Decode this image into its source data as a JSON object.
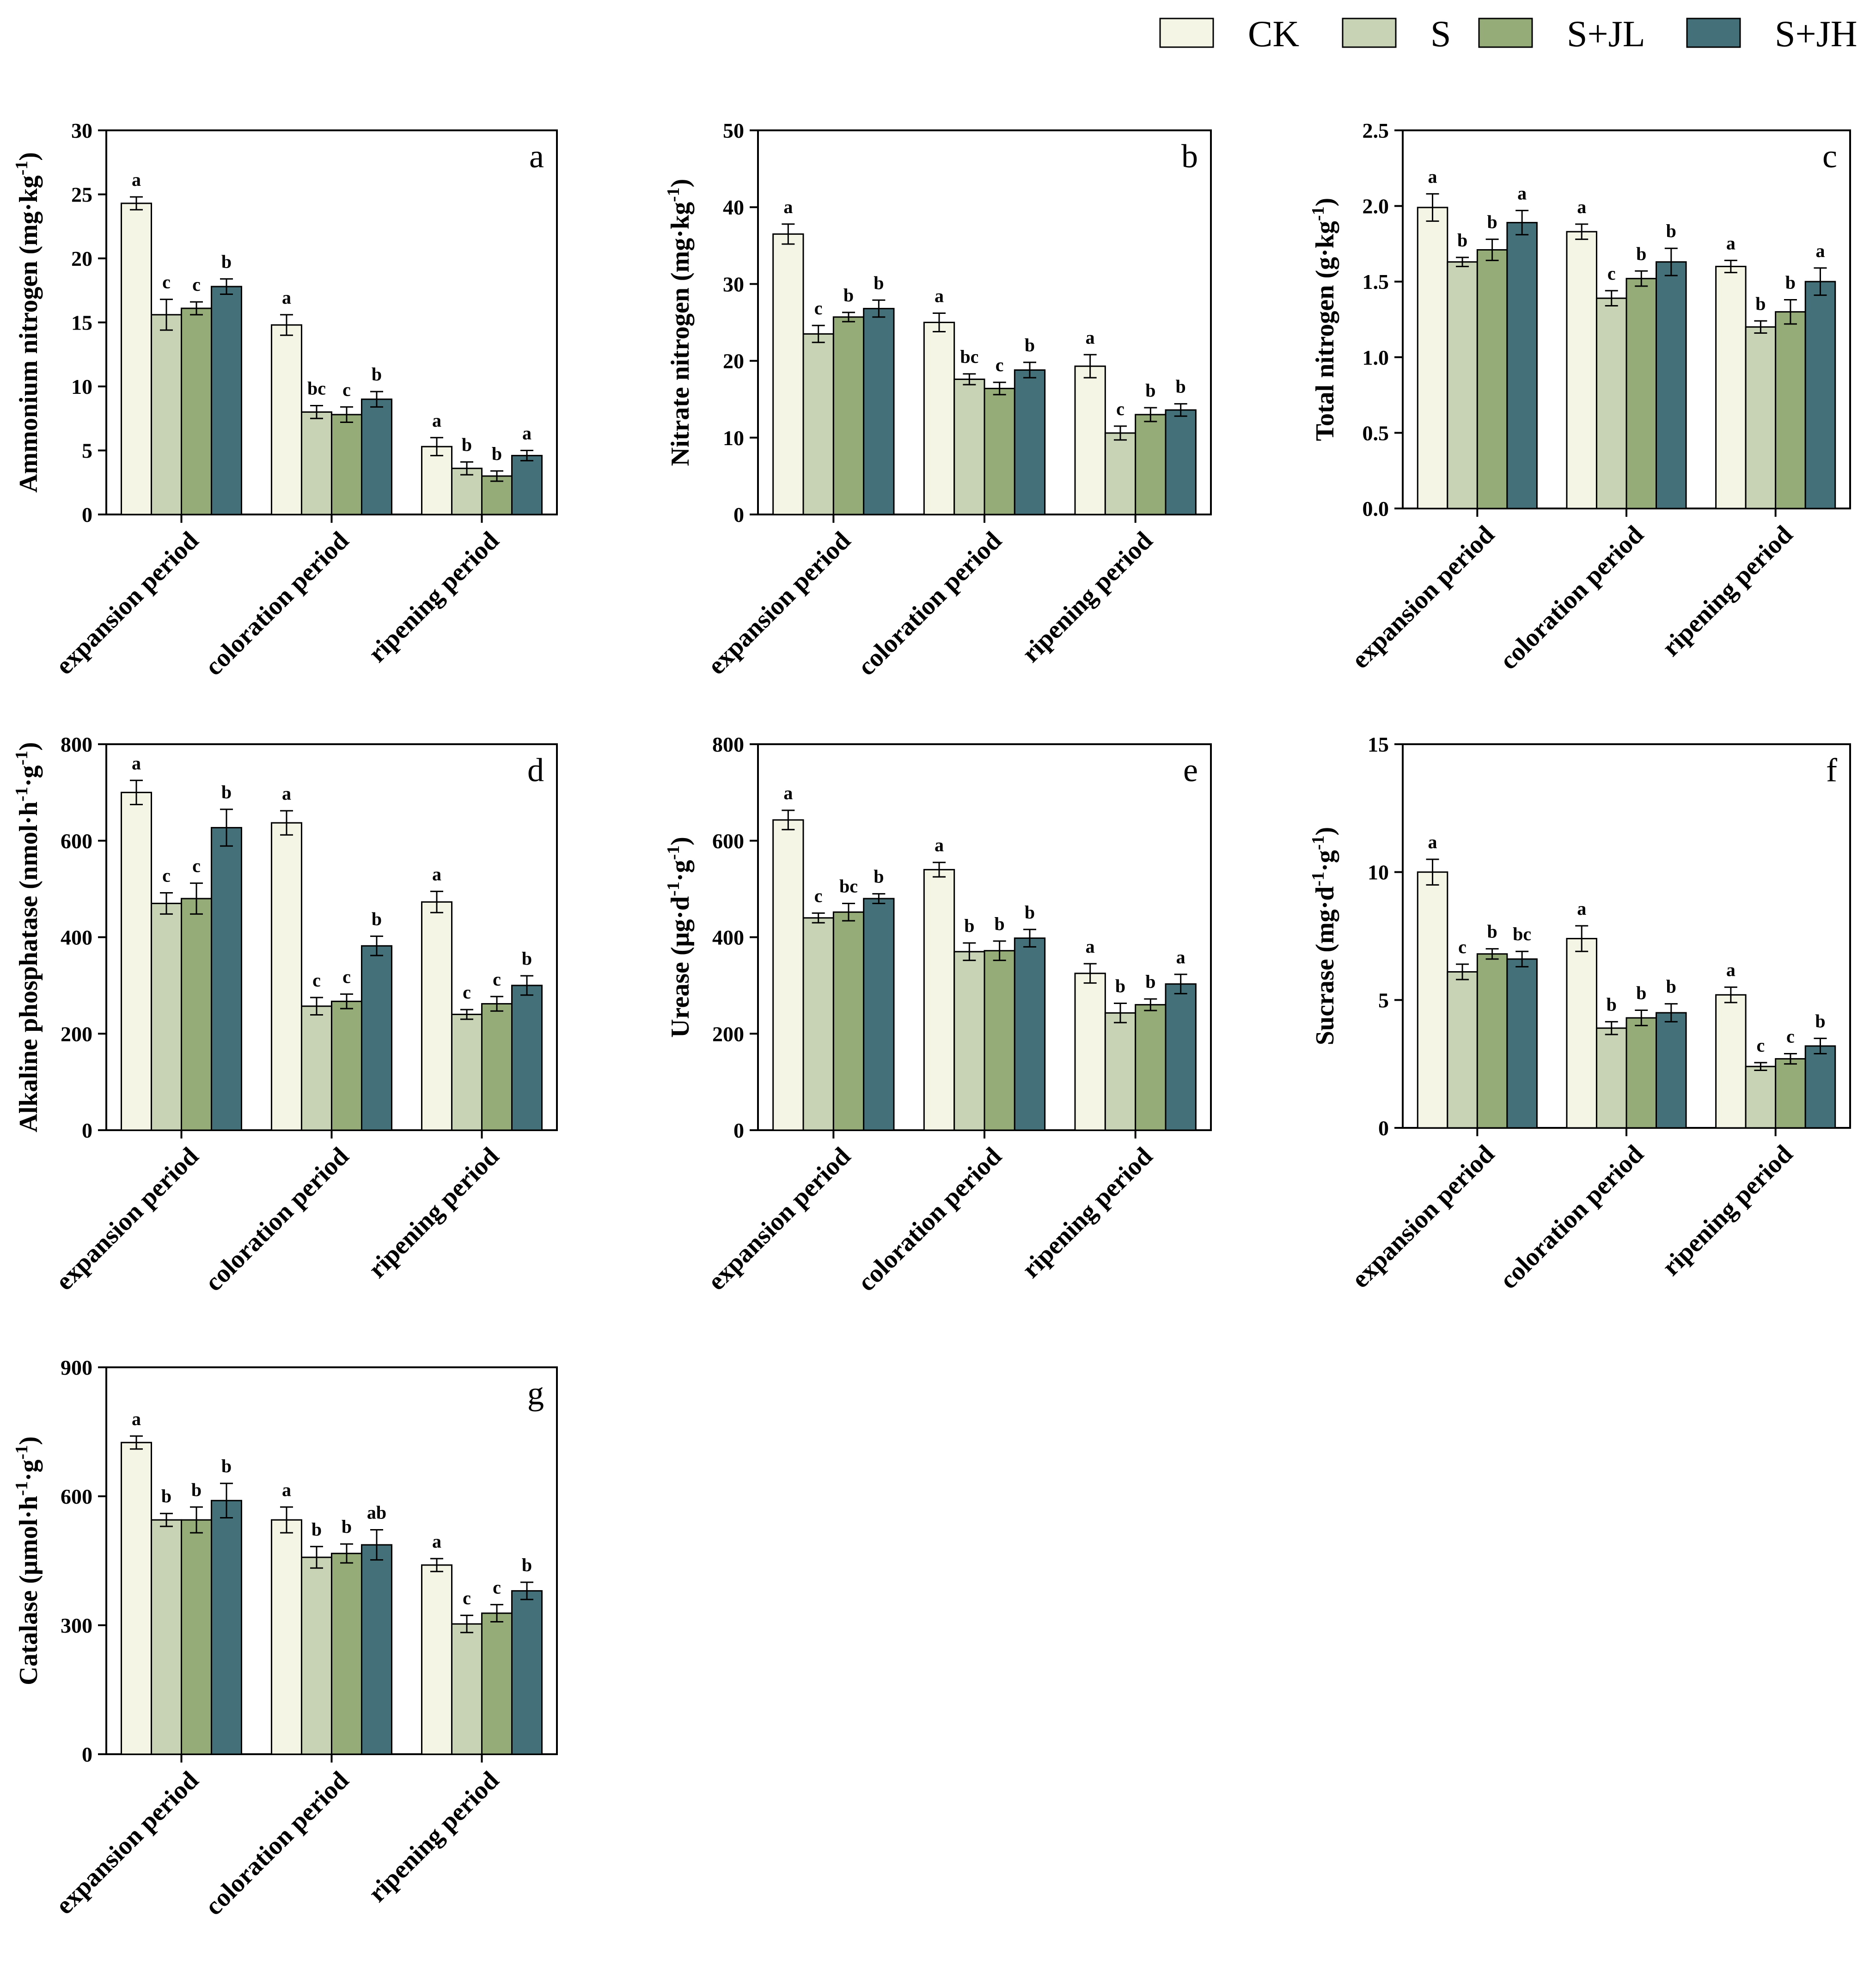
{
  "legend": {
    "entries": [
      {
        "name": "CK",
        "color": "#f5f5e6"
      },
      {
        "name": "S",
        "color": "#c8d3b6"
      },
      {
        "name": "S+JL",
        "color": "#95ab78"
      },
      {
        "name": "S+JH",
        "color": "#44707a"
      }
    ]
  },
  "chart_data": [
    {
      "type": "bar",
      "panel": "a",
      "ylabel": "Ammonium nitrogen (mg·kg⁻¹)",
      "ylim": [
        0,
        30
      ],
      "yticks": [
        0,
        5,
        10,
        15,
        20,
        25,
        30
      ],
      "categories": [
        "expansion period",
        "coloration period",
        "ripening period"
      ],
      "series": [
        {
          "name": "CK",
          "values": [
            24.3,
            14.8,
            5.3
          ],
          "errors": [
            0.5,
            0.8,
            0.7
          ],
          "labels": [
            "a",
            "a",
            "a"
          ]
        },
        {
          "name": "S",
          "values": [
            15.6,
            8.0,
            3.6
          ],
          "errors": [
            1.2,
            0.5,
            0.5
          ],
          "labels": [
            "c",
            "bc",
            "b"
          ]
        },
        {
          "name": "S+JL",
          "values": [
            16.1,
            7.8,
            3.0
          ],
          "errors": [
            0.5,
            0.6,
            0.4
          ],
          "labels": [
            "c",
            "c",
            "b"
          ]
        },
        {
          "name": "S+JH",
          "values": [
            17.8,
            9.0,
            4.6
          ],
          "errors": [
            0.6,
            0.6,
            0.4
          ],
          "labels": [
            "b",
            "b",
            "a"
          ]
        }
      ]
    },
    {
      "type": "bar",
      "panel": "b",
      "ylabel": "Nitrate nitrogen (mg·kg⁻¹)",
      "ylim": [
        0,
        50
      ],
      "yticks": [
        0,
        10,
        20,
        30,
        40,
        50
      ],
      "categories": [
        "expansion period",
        "coloration period",
        "ripening period"
      ],
      "series": [
        {
          "name": "CK",
          "values": [
            36.5,
            25.0,
            19.3
          ],
          "errors": [
            1.3,
            1.2,
            1.5
          ],
          "labels": [
            "a",
            "a",
            "a"
          ]
        },
        {
          "name": "S",
          "values": [
            23.5,
            17.6,
            10.6
          ],
          "errors": [
            1.1,
            0.7,
            0.9
          ],
          "labels": [
            "c",
            "bc",
            "c"
          ]
        },
        {
          "name": "S+JL",
          "values": [
            25.7,
            16.4,
            13.0
          ],
          "errors": [
            0.6,
            0.8,
            0.9
          ],
          "labels": [
            "b",
            "c",
            "b"
          ]
        },
        {
          "name": "S+JH",
          "values": [
            26.8,
            18.8,
            13.6
          ],
          "errors": [
            1.1,
            1.0,
            0.8
          ],
          "labels": [
            "b",
            "b",
            "b"
          ]
        }
      ]
    },
    {
      "type": "bar",
      "panel": "c",
      "ylabel": "Total nitrogen (g·kg⁻¹)",
      "ylim": [
        0,
        2.5
      ],
      "yticks": [
        "0.0",
        "0.5",
        "1.0",
        "1.5",
        "2.0",
        "2.5"
      ],
      "categories": [
        "expansion period",
        "coloration period",
        "ripening period"
      ],
      "series": [
        {
          "name": "CK",
          "values": [
            1.99,
            1.83,
            1.6
          ],
          "errors": [
            0.09,
            0.05,
            0.04
          ],
          "labels": [
            "a",
            "a",
            "a"
          ]
        },
        {
          "name": "S",
          "values": [
            1.63,
            1.39,
            1.2
          ],
          "errors": [
            0.03,
            0.05,
            0.04
          ],
          "labels": [
            "b",
            "c",
            "b"
          ]
        },
        {
          "name": "S+JL",
          "values": [
            1.71,
            1.52,
            1.3
          ],
          "errors": [
            0.07,
            0.05,
            0.08
          ],
          "labels": [
            "b",
            "b",
            "b"
          ]
        },
        {
          "name": "S+JH",
          "values": [
            1.89,
            1.63,
            1.5
          ],
          "errors": [
            0.08,
            0.09,
            0.09
          ],
          "labels": [
            "a",
            "b",
            "a"
          ]
        }
      ]
    },
    {
      "type": "bar",
      "panel": "d",
      "ylabel": "Alkaline phosphatase (nmol·h⁻¹·g⁻¹)",
      "ylim": [
        0,
        800
      ],
      "yticks": [
        0,
        200,
        400,
        600,
        800
      ],
      "categories": [
        "expansion period",
        "coloration period",
        "ripening period"
      ],
      "series": [
        {
          "name": "CK",
          "values": [
            700,
            637,
            473
          ],
          "errors": [
            25,
            25,
            22
          ],
          "labels": [
            "a",
            "a",
            "a"
          ]
        },
        {
          "name": "S",
          "values": [
            470,
            257,
            240
          ],
          "errors": [
            22,
            18,
            10
          ],
          "labels": [
            "c",
            "c",
            "c"
          ]
        },
        {
          "name": "S+JL",
          "values": [
            480,
            267,
            262
          ],
          "errors": [
            32,
            15,
            15
          ],
          "labels": [
            "c",
            "c",
            "c"
          ]
        },
        {
          "name": "S+JH",
          "values": [
            627,
            382,
            300
          ],
          "errors": [
            38,
            20,
            20
          ],
          "labels": [
            "b",
            "b",
            "b"
          ]
        }
      ]
    },
    {
      "type": "bar",
      "panel": "e",
      "ylabel": "Urease (μg·d⁻¹·g⁻¹)",
      "ylim": [
        0,
        800
      ],
      "yticks": [
        0,
        200,
        400,
        600,
        800
      ],
      "categories": [
        "expansion period",
        "coloration period",
        "ripening period"
      ],
      "series": [
        {
          "name": "CK",
          "values": [
            643,
            540,
            325
          ],
          "errors": [
            20,
            15,
            20
          ],
          "labels": [
            "a",
            "a",
            "a"
          ]
        },
        {
          "name": "S",
          "values": [
            440,
            370,
            243
          ],
          "errors": [
            10,
            18,
            20
          ],
          "labels": [
            "c",
            "b",
            "b"
          ]
        },
        {
          "name": "S+JL",
          "values": [
            452,
            372,
            260
          ],
          "errors": [
            18,
            20,
            12
          ],
          "labels": [
            "bc",
            "b",
            "b"
          ]
        },
        {
          "name": "S+JH",
          "values": [
            480,
            398,
            303
          ],
          "errors": [
            10,
            18,
            20
          ],
          "labels": [
            "b",
            "b",
            "a"
          ]
        }
      ]
    },
    {
      "type": "bar",
      "panel": "f",
      "ylabel": "Sucrase (mg·d⁻¹·g⁻¹)",
      "ylim": [
        0,
        15
      ],
      "yticks": [
        0,
        5,
        10,
        15
      ],
      "categories": [
        "expansion period",
        "coloration period",
        "ripening period"
      ],
      "series": [
        {
          "name": "CK",
          "values": [
            10.0,
            7.4,
            5.2
          ],
          "errors": [
            0.5,
            0.5,
            0.3
          ],
          "labels": [
            "a",
            "a",
            "a"
          ]
        },
        {
          "name": "S",
          "values": [
            6.1,
            3.9,
            2.4
          ],
          "errors": [
            0.3,
            0.25,
            0.15
          ],
          "labels": [
            "c",
            "b",
            "c"
          ]
        },
        {
          "name": "S+JL",
          "values": [
            6.8,
            4.3,
            2.7
          ],
          "errors": [
            0.2,
            0.3,
            0.2
          ],
          "labels": [
            "b",
            "b",
            "c"
          ]
        },
        {
          "name": "S+JH",
          "values": [
            6.6,
            4.5,
            3.2
          ],
          "errors": [
            0.3,
            0.35,
            0.3
          ],
          "labels": [
            "bc",
            "b",
            "b"
          ]
        }
      ]
    },
    {
      "type": "bar",
      "panel": "g",
      "ylabel": "Catalase (μmol·h⁻¹·g⁻¹)",
      "ylim": [
        0,
        900
      ],
      "yticks": [
        0,
        300,
        600,
        900
      ],
      "categories": [
        "expansion period",
        "coloration period",
        "ripening period"
      ],
      "series": [
        {
          "name": "CK",
          "values": [
            725,
            545,
            440
          ],
          "errors": [
            15,
            30,
            15
          ],
          "labels": [
            "a",
            "a",
            "a"
          ]
        },
        {
          "name": "S",
          "values": [
            545,
            458,
            303
          ],
          "errors": [
            15,
            25,
            20
          ],
          "labels": [
            "b",
            "b",
            "c"
          ]
        },
        {
          "name": "S+JL",
          "values": [
            545,
            467,
            328
          ],
          "errors": [
            30,
            22,
            20
          ],
          "labels": [
            "b",
            "b",
            "c"
          ]
        },
        {
          "name": "S+JH",
          "values": [
            590,
            487,
            380
          ],
          "errors": [
            40,
            35,
            20
          ],
          "labels": [
            "b",
            "ab",
            "b"
          ]
        }
      ]
    }
  ]
}
